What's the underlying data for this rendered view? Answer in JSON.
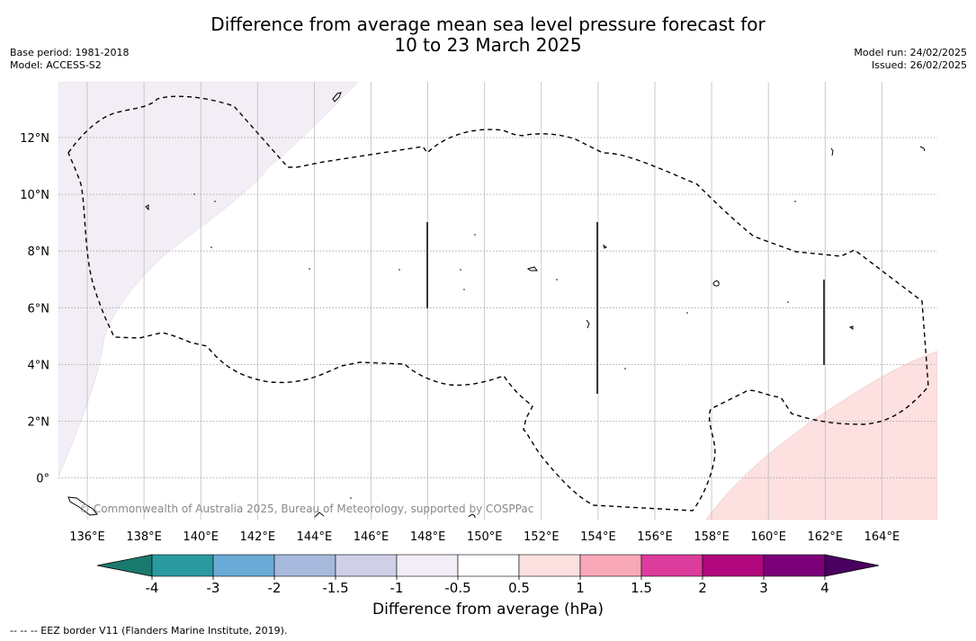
{
  "title": {
    "line1": "Difference from average mean sea level pressure forecast for",
    "line2": "10 to 23 March 2025"
  },
  "meta_left": {
    "base_period": "Base period: 1981-2018",
    "model": "Model: ACCESS-S2"
  },
  "meta_right": {
    "model_run": "Model run: 24/02/2025",
    "issued": "Issued: 26/02/2025"
  },
  "map": {
    "lon_labels": [
      "136°E",
      "138°E",
      "140°E",
      "142°E",
      "144°E",
      "146°E",
      "148°E",
      "150°E",
      "152°E",
      "154°E",
      "156°E",
      "158°E",
      "160°E",
      "162°E",
      "164°E"
    ],
    "lat_labels": [
      "12°N",
      "10°N",
      "8°N",
      "6°N",
      "4°N",
      "2°N",
      "0°"
    ],
    "copyright": "© Commonwealth of Australia 2025, Bureau of Meteorology, supported by COSPPac"
  },
  "colorbar": {
    "colors": [
      "#1a7a6e",
      "#2b9aa0",
      "#6aaad6",
      "#a7b9dc",
      "#cfd0e8",
      "#f3eef6",
      "#ffffff",
      "#fde0e0",
      "#f8a8b8",
      "#dc3c9c",
      "#b0087c",
      "#7c007a",
      "#4a0060"
    ],
    "tick_labels": [
      "-4",
      "-3",
      "-2",
      "-1.5",
      "-1",
      "-0.5",
      "0.5",
      "1",
      "1.5",
      "2",
      "3",
      "4"
    ],
    "label": "Difference from average (hPa)"
  },
  "footnote": "-- -- -- EEZ border V11 (Flanders Marine Institute, 2019)."
}
